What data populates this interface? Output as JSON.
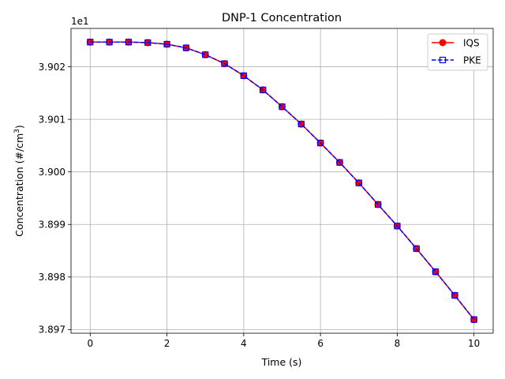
{
  "chart_data": {
    "type": "line",
    "title": "DNP-1 Concentration",
    "xlabel": "Time (s)",
    "ylabel_prefix": "Concentration (#/cm",
    "ylabel_sup": "3",
    "ylabel_suffix": ")",
    "y_offset_label": "1e1",
    "xlim": [
      -0.5,
      10.5
    ],
    "ylim": [
      3.89693,
      3.90273
    ],
    "xticks": [
      0,
      2,
      4,
      6,
      8,
      10
    ],
    "xtick_labels": [
      "0",
      "2",
      "4",
      "6",
      "8",
      "10"
    ],
    "yticks": [
      3.897,
      3.898,
      3.899,
      3.9,
      3.901,
      3.902
    ],
    "ytick_labels": [
      "3.897",
      "3.898",
      "3.899",
      "3.900",
      "3.901",
      "3.902"
    ],
    "grid": true,
    "legend_position": "top-right",
    "x": [
      0,
      0.5,
      1,
      1.5,
      2,
      2.5,
      3,
      3.5,
      4,
      4.5,
      5,
      5.5,
      6,
      6.5,
      7,
      7.5,
      8,
      8.5,
      9,
      9.5,
      10
    ],
    "series": [
      {
        "name": "IQS",
        "color": "#ff0000",
        "line_style": "solid",
        "marker": "circle",
        "values": [
          3.90247,
          3.90247,
          3.90247,
          3.90246,
          3.90243,
          3.90236,
          3.90223,
          3.90206,
          3.90183,
          3.90156,
          3.90124,
          3.90091,
          3.90055,
          3.90018,
          3.89979,
          3.89938,
          3.89897,
          3.89854,
          3.8981,
          3.89765,
          3.89719
        ]
      },
      {
        "name": "PKE",
        "color": "#0000ff",
        "line_style": "dashed",
        "marker": "square-open",
        "values": [
          3.90247,
          3.90247,
          3.90247,
          3.90246,
          3.90243,
          3.90236,
          3.90223,
          3.90206,
          3.90183,
          3.90156,
          3.90124,
          3.90091,
          3.90055,
          3.90018,
          3.89979,
          3.89938,
          3.89897,
          3.89854,
          3.8981,
          3.89765,
          3.89719
        ]
      }
    ]
  }
}
